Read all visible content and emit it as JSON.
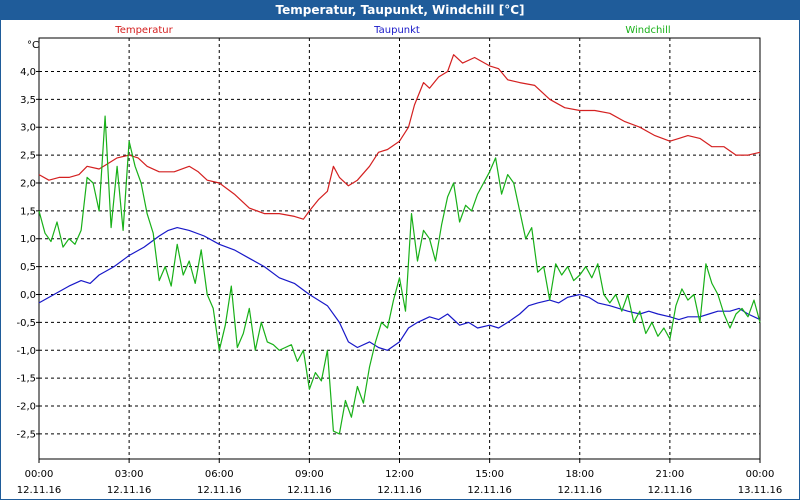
{
  "window": {
    "title": "Temperatur, Taupunkt, Windchill [°C]"
  },
  "chart_data": {
    "type": "line",
    "title": "Temperatur, Taupunkt, Windchill [°C]",
    "ylabel": "°C",
    "ylim": [
      -2.95,
      4.6
    ],
    "xlim": [
      0,
      24
    ],
    "yticks": [
      -2.5,
      -2.0,
      -1.5,
      -1.0,
      -0.5,
      0.0,
      0.5,
      1.0,
      1.5,
      2.0,
      2.5,
      3.0,
      3.5,
      4.0
    ],
    "ytick_labels": [
      "-2,5",
      "-2,0",
      "-1,5",
      "-1,0",
      "-0,5",
      "0,0",
      "0,5",
      "1,0",
      "1,5",
      "2,0",
      "2,5",
      "3,0",
      "3,5",
      "4,0"
    ],
    "xticks": [
      {
        "x": 0,
        "time": "00:00",
        "date": "12.11.16"
      },
      {
        "x": 3,
        "time": "03:00",
        "date": "12.11.16"
      },
      {
        "x": 6,
        "time": "06:00",
        "date": "12.11.16"
      },
      {
        "x": 9,
        "time": "09:00",
        "date": "12.11.16"
      },
      {
        "x": 12,
        "time": "12:00",
        "date": "12.11.16"
      },
      {
        "x": 15,
        "time": "15:00",
        "date": "12.11.16"
      },
      {
        "x": 18,
        "time": "18:00",
        "date": "12.11.16"
      },
      {
        "x": 21,
        "time": "21:00",
        "date": "12.11.16"
      },
      {
        "x": 24,
        "time": "00:00",
        "date": "13.11.16"
      }
    ],
    "grid": true,
    "series": [
      {
        "name": "Temperatur",
        "color": "#d42020",
        "points": [
          [
            0,
            2.15
          ],
          [
            0.33,
            2.05
          ],
          [
            0.67,
            2.1
          ],
          [
            1.0,
            2.1
          ],
          [
            1.33,
            2.15
          ],
          [
            1.6,
            2.3
          ],
          [
            2.0,
            2.25
          ],
          [
            2.3,
            2.35
          ],
          [
            2.6,
            2.45
          ],
          [
            3.0,
            2.5
          ],
          [
            3.3,
            2.45
          ],
          [
            3.6,
            2.3
          ],
          [
            4.0,
            2.2
          ],
          [
            4.5,
            2.2
          ],
          [
            5.0,
            2.3
          ],
          [
            5.3,
            2.2
          ],
          [
            5.6,
            2.05
          ],
          [
            6.0,
            2.0
          ],
          [
            6.5,
            1.8
          ],
          [
            7.0,
            1.55
          ],
          [
            7.5,
            1.45
          ],
          [
            8.0,
            1.45
          ],
          [
            8.5,
            1.4
          ],
          [
            8.8,
            1.35
          ],
          [
            9.0,
            1.5
          ],
          [
            9.3,
            1.7
          ],
          [
            9.6,
            1.85
          ],
          [
            9.8,
            2.3
          ],
          [
            10.0,
            2.1
          ],
          [
            10.3,
            1.95
          ],
          [
            10.6,
            2.05
          ],
          [
            11.0,
            2.3
          ],
          [
            11.3,
            2.55
          ],
          [
            11.6,
            2.6
          ],
          [
            12.0,
            2.75
          ],
          [
            12.3,
            3.0
          ],
          [
            12.5,
            3.4
          ],
          [
            12.8,
            3.8
          ],
          [
            13.0,
            3.7
          ],
          [
            13.3,
            3.9
          ],
          [
            13.6,
            4.0
          ],
          [
            13.8,
            4.3
          ],
          [
            14.1,
            4.15
          ],
          [
            14.5,
            4.25
          ],
          [
            15.0,
            4.1
          ],
          [
            15.3,
            4.05
          ],
          [
            15.6,
            3.85
          ],
          [
            16.0,
            3.8
          ],
          [
            16.5,
            3.75
          ],
          [
            17.0,
            3.5
          ],
          [
            17.5,
            3.35
          ],
          [
            18.0,
            3.3
          ],
          [
            18.5,
            3.3
          ],
          [
            19.0,
            3.25
          ],
          [
            19.5,
            3.1
          ],
          [
            20.0,
            3.0
          ],
          [
            20.5,
            2.85
          ],
          [
            21.0,
            2.75
          ],
          [
            21.3,
            2.8
          ],
          [
            21.6,
            2.85
          ],
          [
            22.0,
            2.8
          ],
          [
            22.4,
            2.65
          ],
          [
            22.8,
            2.65
          ],
          [
            23.2,
            2.5
          ],
          [
            23.6,
            2.5
          ],
          [
            24.0,
            2.55
          ]
        ]
      },
      {
        "name": "Taupunkt",
        "color": "#1818c8",
        "points": [
          [
            0,
            -0.15
          ],
          [
            0.5,
            0.0
          ],
          [
            1.0,
            0.15
          ],
          [
            1.4,
            0.25
          ],
          [
            1.7,
            0.2
          ],
          [
            2.0,
            0.35
          ],
          [
            2.5,
            0.5
          ],
          [
            3.0,
            0.7
          ],
          [
            3.5,
            0.85
          ],
          [
            4.0,
            1.05
          ],
          [
            4.3,
            1.15
          ],
          [
            4.6,
            1.2
          ],
          [
            5.0,
            1.15
          ],
          [
            5.5,
            1.05
          ],
          [
            6.0,
            0.9
          ],
          [
            6.5,
            0.8
          ],
          [
            7.0,
            0.65
          ],
          [
            7.5,
            0.5
          ],
          [
            8.0,
            0.3
          ],
          [
            8.5,
            0.2
          ],
          [
            9.0,
            0.0
          ],
          [
            9.3,
            -0.1
          ],
          [
            9.6,
            -0.2
          ],
          [
            10.0,
            -0.5
          ],
          [
            10.3,
            -0.85
          ],
          [
            10.6,
            -0.95
          ],
          [
            11.0,
            -0.85
          ],
          [
            11.3,
            -0.95
          ],
          [
            11.6,
            -1.0
          ],
          [
            12.0,
            -0.85
          ],
          [
            12.3,
            -0.6
          ],
          [
            12.6,
            -0.5
          ],
          [
            13.0,
            -0.4
          ],
          [
            13.3,
            -0.45
          ],
          [
            13.6,
            -0.35
          ],
          [
            14.0,
            -0.55
          ],
          [
            14.3,
            -0.5
          ],
          [
            14.6,
            -0.6
          ],
          [
            15.0,
            -0.55
          ],
          [
            15.3,
            -0.6
          ],
          [
            15.6,
            -0.5
          ],
          [
            16.0,
            -0.35
          ],
          [
            16.3,
            -0.2
          ],
          [
            16.6,
            -0.15
          ],
          [
            17.0,
            -0.1
          ],
          [
            17.3,
            -0.15
          ],
          [
            17.6,
            -0.05
          ],
          [
            18.0,
            0.0
          ],
          [
            18.3,
            -0.05
          ],
          [
            18.6,
            -0.15
          ],
          [
            19.0,
            -0.2
          ],
          [
            19.3,
            -0.25
          ],
          [
            19.6,
            -0.3
          ],
          [
            20.0,
            -0.35
          ],
          [
            20.3,
            -0.3
          ],
          [
            20.6,
            -0.35
          ],
          [
            21.0,
            -0.4
          ],
          [
            21.3,
            -0.45
          ],
          [
            21.6,
            -0.4
          ],
          [
            22.0,
            -0.4
          ],
          [
            22.3,
            -0.35
          ],
          [
            22.6,
            -0.3
          ],
          [
            23.0,
            -0.3
          ],
          [
            23.3,
            -0.25
          ],
          [
            23.6,
            -0.35
          ],
          [
            24.0,
            -0.45
          ]
        ]
      },
      {
        "name": "Windchill",
        "color": "#18b018",
        "points": [
          [
            0,
            1.5
          ],
          [
            0.2,
            1.1
          ],
          [
            0.4,
            0.95
          ],
          [
            0.6,
            1.3
          ],
          [
            0.8,
            0.85
          ],
          [
            1.0,
            1.0
          ],
          [
            1.2,
            0.9
          ],
          [
            1.4,
            1.15
          ],
          [
            1.6,
            2.1
          ],
          [
            1.8,
            2.0
          ],
          [
            2.0,
            1.5
          ],
          [
            2.2,
            3.2
          ],
          [
            2.4,
            1.2
          ],
          [
            2.6,
            2.3
          ],
          [
            2.8,
            1.15
          ],
          [
            3.0,
            2.75
          ],
          [
            3.2,
            2.3
          ],
          [
            3.4,
            2.0
          ],
          [
            3.6,
            1.45
          ],
          [
            3.8,
            1.1
          ],
          [
            4.0,
            0.25
          ],
          [
            4.2,
            0.5
          ],
          [
            4.4,
            0.15
          ],
          [
            4.6,
            0.9
          ],
          [
            4.8,
            0.35
          ],
          [
            5.0,
            0.6
          ],
          [
            5.2,
            0.2
          ],
          [
            5.4,
            0.8
          ],
          [
            5.6,
            0.0
          ],
          [
            5.8,
            -0.25
          ],
          [
            6.0,
            -1.0
          ],
          [
            6.2,
            -0.55
          ],
          [
            6.4,
            0.15
          ],
          [
            6.6,
            -0.95
          ],
          [
            6.8,
            -0.7
          ],
          [
            7.0,
            -0.25
          ],
          [
            7.2,
            -1.0
          ],
          [
            7.4,
            -0.5
          ],
          [
            7.6,
            -0.85
          ],
          [
            7.8,
            -0.9
          ],
          [
            8.0,
            -1.0
          ],
          [
            8.2,
            -0.95
          ],
          [
            8.4,
            -0.9
          ],
          [
            8.6,
            -1.2
          ],
          [
            8.8,
            -1.0
          ],
          [
            9.0,
            -1.7
          ],
          [
            9.2,
            -1.4
          ],
          [
            9.4,
            -1.55
          ],
          [
            9.6,
            -1.0
          ],
          [
            9.8,
            -2.45
          ],
          [
            10.0,
            -2.5
          ],
          [
            10.2,
            -1.9
          ],
          [
            10.4,
            -2.2
          ],
          [
            10.6,
            -1.65
          ],
          [
            10.8,
            -1.95
          ],
          [
            11.0,
            -1.3
          ],
          [
            11.2,
            -0.85
          ],
          [
            11.4,
            -0.5
          ],
          [
            11.6,
            -0.6
          ],
          [
            11.8,
            -0.1
          ],
          [
            12.0,
            0.3
          ],
          [
            12.2,
            -0.3
          ],
          [
            12.4,
            1.45
          ],
          [
            12.6,
            0.6
          ],
          [
            12.8,
            1.15
          ],
          [
            13.0,
            1.0
          ],
          [
            13.2,
            0.6
          ],
          [
            13.4,
            1.25
          ],
          [
            13.6,
            1.75
          ],
          [
            13.8,
            2.0
          ],
          [
            14.0,
            1.3
          ],
          [
            14.2,
            1.6
          ],
          [
            14.4,
            1.5
          ],
          [
            14.6,
            1.8
          ],
          [
            14.8,
            2.0
          ],
          [
            15.0,
            2.2
          ],
          [
            15.2,
            2.45
          ],
          [
            15.4,
            1.8
          ],
          [
            15.6,
            2.15
          ],
          [
            15.8,
            2.0
          ],
          [
            16.0,
            1.5
          ],
          [
            16.2,
            1.0
          ],
          [
            16.4,
            1.2
          ],
          [
            16.6,
            0.4
          ],
          [
            16.8,
            0.5
          ],
          [
            17.0,
            -0.1
          ],
          [
            17.2,
            0.55
          ],
          [
            17.4,
            0.35
          ],
          [
            17.6,
            0.5
          ],
          [
            17.8,
            0.25
          ],
          [
            18.0,
            0.35
          ],
          [
            18.2,
            0.5
          ],
          [
            18.4,
            0.3
          ],
          [
            18.6,
            0.55
          ],
          [
            18.8,
            0.0
          ],
          [
            19.0,
            -0.15
          ],
          [
            19.2,
            0.0
          ],
          [
            19.4,
            -0.3
          ],
          [
            19.6,
            0.0
          ],
          [
            19.8,
            -0.5
          ],
          [
            20.0,
            -0.3
          ],
          [
            20.2,
            -0.7
          ],
          [
            20.4,
            -0.5
          ],
          [
            20.6,
            -0.75
          ],
          [
            20.8,
            -0.6
          ],
          [
            21.0,
            -0.8
          ],
          [
            21.2,
            -0.2
          ],
          [
            21.4,
            0.1
          ],
          [
            21.6,
            -0.1
          ],
          [
            21.8,
            0.0
          ],
          [
            22.0,
            -0.5
          ],
          [
            22.2,
            0.55
          ],
          [
            22.4,
            0.2
          ],
          [
            22.6,
            0.0
          ],
          [
            22.8,
            -0.35
          ],
          [
            23.0,
            -0.6
          ],
          [
            23.2,
            -0.35
          ],
          [
            23.4,
            -0.25
          ],
          [
            23.6,
            -0.4
          ],
          [
            23.8,
            -0.1
          ],
          [
            24.0,
            -0.5
          ]
        ]
      }
    ]
  }
}
